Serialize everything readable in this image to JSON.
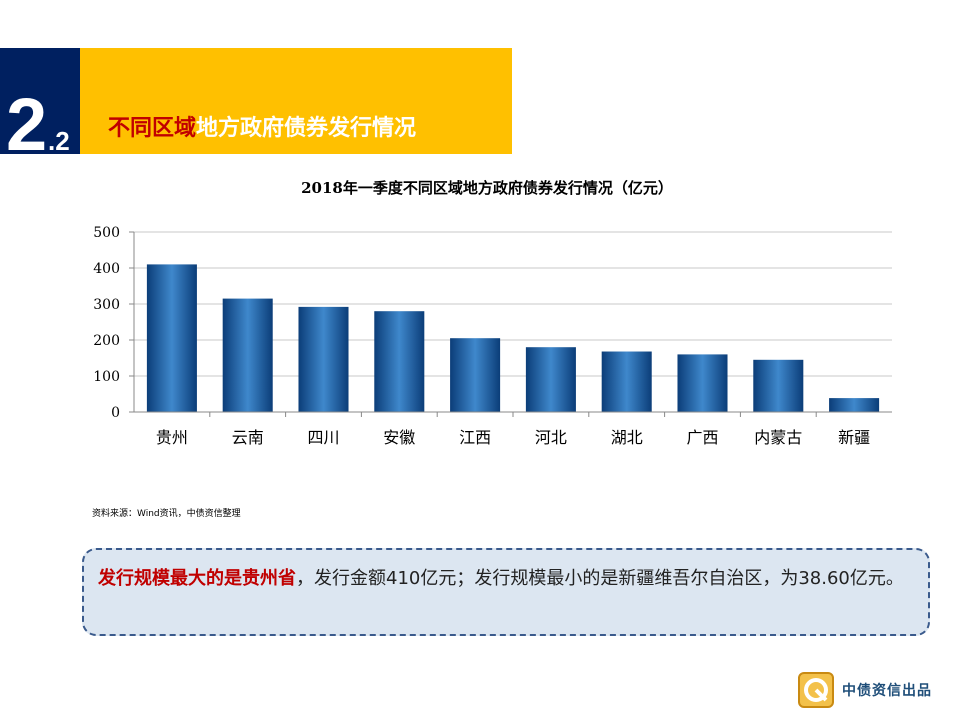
{
  "section": {
    "number": "2",
    "sub_number": ".2"
  },
  "header": {
    "title_highlight": "不同区域",
    "title_rest": "地方政府债券发行情况"
  },
  "chart_data": {
    "type": "bar",
    "title": "2018年一季度不同区域地方政府债券发行情况（亿元）",
    "categories": [
      "贵州",
      "云南",
      "四川",
      "安徽",
      "江西",
      "河北",
      "湖北",
      "广西",
      "内蒙古",
      "新疆"
    ],
    "values": [
      410,
      315,
      292,
      280,
      205,
      180,
      168,
      160,
      145,
      38.6
    ],
    "ylim": [
      0,
      500
    ],
    "yticks": [
      0,
      100,
      200,
      300,
      400,
      500
    ],
    "grid": true,
    "xlabel": "",
    "ylabel": "",
    "colors": {
      "bar_dark": "#0b3d78",
      "bar_light": "#3f88cc",
      "grid": "#c8c8c8"
    }
  },
  "source_note": "资料来源：Wind资讯，中债资信整理",
  "summary": {
    "emphasis": "发行规模最大的是贵州省",
    "rest": "，发行金额410亿元；发行规模最小的是新疆维吾尔自治区，为38.60亿元。"
  },
  "footer": {
    "logo_icon": "zhongzhai-logo-icon",
    "brand": "中债资信出品"
  }
}
